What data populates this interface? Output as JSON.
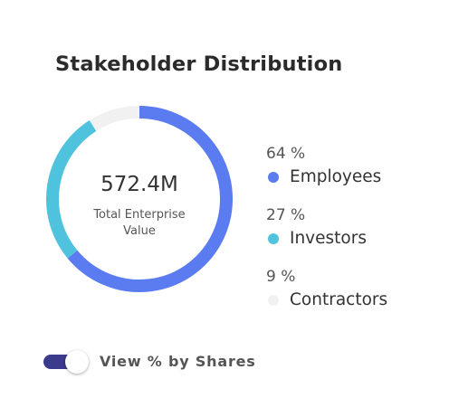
{
  "title": "Stakeholder Distribution",
  "center": {
    "value": "572.4M",
    "caption": "Total Enterprise Value"
  },
  "chart_data": {
    "type": "pie",
    "variant": "donut",
    "title": "Stakeholder Distribution",
    "categories": [
      "Employees",
      "Investors",
      "Contractors"
    ],
    "values": [
      64,
      27,
      9
    ],
    "unit": "%",
    "colors": [
      "#5b7bf0",
      "#4fc3dd",
      "#f1f1f1"
    ],
    "legend_position": "right"
  },
  "legend": [
    {
      "pct": "64 %",
      "label": "Employees",
      "color": "#5b7bf0"
    },
    {
      "pct": "27 %",
      "label": "Investors",
      "color": "#4fc3dd"
    },
    {
      "pct": "9 %",
      "label": "Contractors",
      "color": "#f1f1f1"
    }
  ],
  "toggle": {
    "label": "View % by Shares",
    "on": true,
    "track_color": "#3b3a8c"
  }
}
